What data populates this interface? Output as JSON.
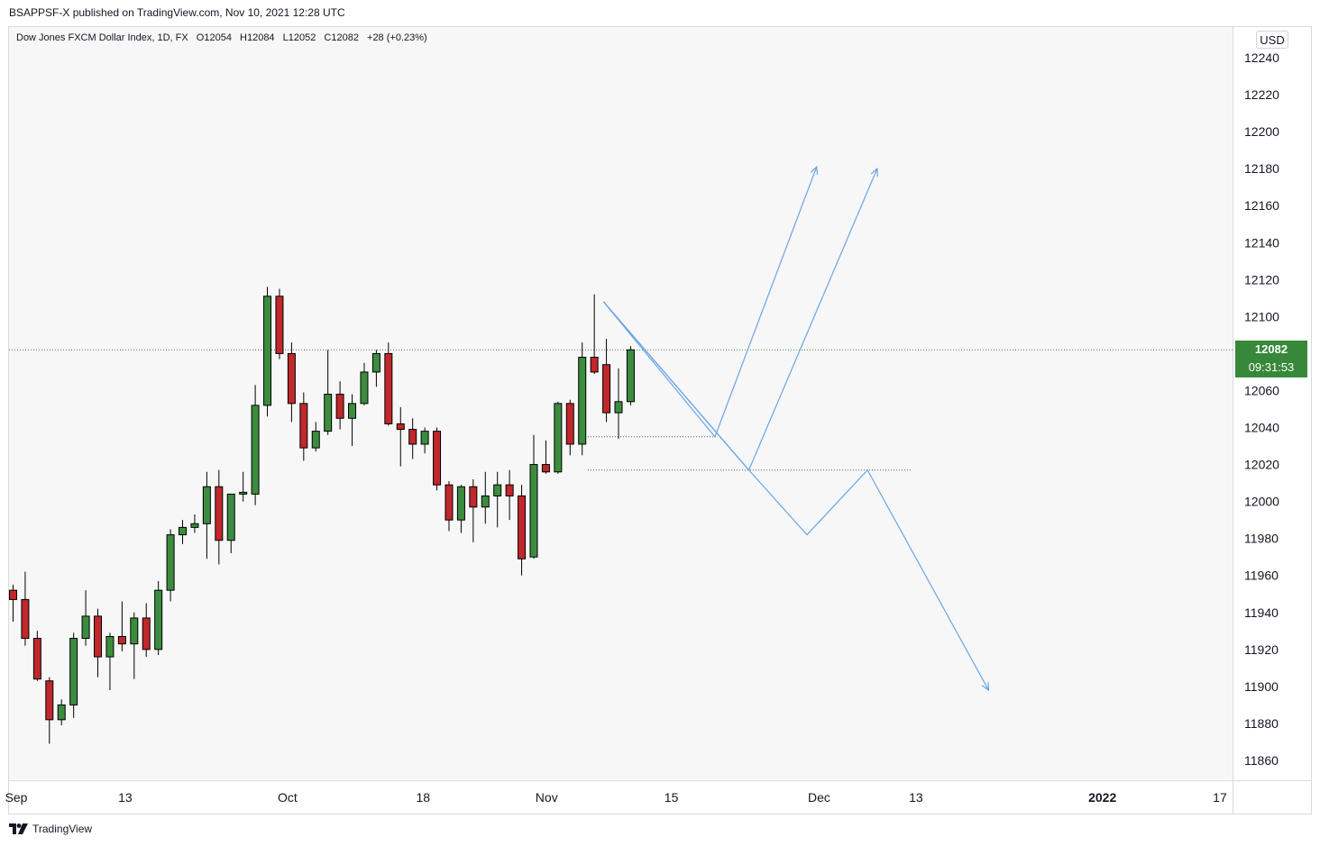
{
  "header": {
    "published": "BSAPPSF-X published on TradingView.com, Nov 10, 2021 12:28 UTC"
  },
  "legend": {
    "symbol": "Dow Jones FXCM Dollar Index, 1D, FX",
    "open": "O12054",
    "high": "H12084",
    "low": "L12052",
    "close": "C12082",
    "change": "+28 (+0.23%)"
  },
  "price_axis": {
    "currency": "USD",
    "last_price": "12082",
    "countdown": "09:31:53"
  },
  "footer": {
    "brand": "TradingView"
  },
  "colors": {
    "up": "#3c8c3f",
    "down": "#c0282b",
    "drawing": "#6aa4e6",
    "last_line": "#3c8c3f",
    "badge": "#37883a"
  },
  "chart_data": {
    "type": "candlestick",
    "title": "Dow Jones FXCM Dollar Index, 1D, FX",
    "ylim": [
      11845,
      12255
    ],
    "y_ticks": [
      12240,
      12220,
      12200,
      12180,
      12160,
      12140,
      12120,
      12100,
      12060,
      12040,
      12020,
      12000,
      11980,
      11960,
      11940,
      11920,
      11900,
      11880,
      11860
    ],
    "x_ticks": [
      {
        "label": "Sep",
        "index": 0.3,
        "bold": false
      },
      {
        "label": "13",
        "index": 9.3,
        "bold": false
      },
      {
        "label": "Oct",
        "index": 22.7,
        "bold": false
      },
      {
        "label": "18",
        "index": 33.9,
        "bold": false
      },
      {
        "label": "Nov",
        "index": 44.1,
        "bold": false
      },
      {
        "label": "15",
        "index": 54.4,
        "bold": false
      },
      {
        "label": "Dec",
        "index": 66.6,
        "bold": false
      },
      {
        "label": "13",
        "index": 74.6,
        "bold": false
      },
      {
        "label": "2022",
        "index": 90.0,
        "bold": true
      },
      {
        "label": "17",
        "index": 99.7,
        "bold": false
      }
    ],
    "candles": [
      {
        "o": 11952,
        "h": 11955,
        "l": 11935,
        "c": 11947
      },
      {
        "o": 11947,
        "h": 11962,
        "l": 11922,
        "c": 11926
      },
      {
        "o": 11926,
        "h": 11930,
        "l": 11903,
        "c": 11904
      },
      {
        "o": 11903,
        "h": 11905,
        "l": 11869,
        "c": 11882
      },
      {
        "o": 11882,
        "h": 11893,
        "l": 11879,
        "c": 11890
      },
      {
        "o": 11890,
        "h": 11929,
        "l": 11883,
        "c": 11926
      },
      {
        "o": 11926,
        "h": 11952,
        "l": 11922,
        "c": 11938
      },
      {
        "o": 11938,
        "h": 11942,
        "l": 11905,
        "c": 11916
      },
      {
        "o": 11916,
        "h": 11929,
        "l": 11898,
        "c": 11927
      },
      {
        "o": 11927,
        "h": 11946,
        "l": 11919,
        "c": 11923
      },
      {
        "o": 11923,
        "h": 11940,
        "l": 11904,
        "c": 11937
      },
      {
        "o": 11937,
        "h": 11945,
        "l": 11916,
        "c": 11920
      },
      {
        "o": 11920,
        "h": 11957,
        "l": 11917,
        "c": 11952
      },
      {
        "o": 11952,
        "h": 11985,
        "l": 11946,
        "c": 11982
      },
      {
        "o": 11982,
        "h": 11990,
        "l": 11977,
        "c": 11986
      },
      {
        "o": 11986,
        "h": 11993,
        "l": 11983,
        "c": 11988
      },
      {
        "o": 11988,
        "h": 12016,
        "l": 11969,
        "c": 12008
      },
      {
        "o": 12008,
        "h": 12017,
        "l": 11966,
        "c": 11979
      },
      {
        "o": 11979,
        "h": 12004,
        "l": 11972,
        "c": 12004
      },
      {
        "o": 12004,
        "h": 12016,
        "l": 12000,
        "c": 12005
      },
      {
        "o": 12004,
        "h": 12063,
        "l": 11998,
        "c": 12052
      },
      {
        "o": 12052,
        "h": 12116,
        "l": 12046,
        "c": 12111
      },
      {
        "o": 12111,
        "h": 12115,
        "l": 12077,
        "c": 12080
      },
      {
        "o": 12080,
        "h": 12086,
        "l": 12043,
        "c": 12053
      },
      {
        "o": 12053,
        "h": 12059,
        "l": 12022,
        "c": 12029
      },
      {
        "o": 12029,
        "h": 12043,
        "l": 12027,
        "c": 12038
      },
      {
        "o": 12038,
        "h": 12082,
        "l": 12036,
        "c": 12058
      },
      {
        "o": 12058,
        "h": 12065,
        "l": 12039,
        "c": 12045
      },
      {
        "o": 12045,
        "h": 12058,
        "l": 12030,
        "c": 12053
      },
      {
        "o": 12053,
        "h": 12075,
        "l": 12052,
        "c": 12070
      },
      {
        "o": 12070,
        "h": 12082,
        "l": 12062,
        "c": 12080
      },
      {
        "o": 12080,
        "h": 12086,
        "l": 12041,
        "c": 12042
      },
      {
        "o": 12042,
        "h": 12051,
        "l": 12019,
        "c": 12039
      },
      {
        "o": 12039,
        "h": 12045,
        "l": 12023,
        "c": 12031
      },
      {
        "o": 12031,
        "h": 12040,
        "l": 12026,
        "c": 12038
      },
      {
        "o": 12038,
        "h": 12040,
        "l": 12006,
        "c": 12009
      },
      {
        "o": 12009,
        "h": 12011,
        "l": 11984,
        "c": 11990
      },
      {
        "o": 11990,
        "h": 12009,
        "l": 11983,
        "c": 12008
      },
      {
        "o": 12008,
        "h": 12012,
        "l": 11978,
        "c": 11997
      },
      {
        "o": 11997,
        "h": 12016,
        "l": 11988,
        "c": 12003
      },
      {
        "o": 12003,
        "h": 12016,
        "l": 11986,
        "c": 12009
      },
      {
        "o": 12009,
        "h": 12017,
        "l": 11990,
        "c": 12003
      },
      {
        "o": 12003,
        "h": 12009,
        "l": 11960,
        "c": 11969
      },
      {
        "o": 11970,
        "h": 12036,
        "l": 11969,
        "c": 12020
      },
      {
        "o": 12020,
        "h": 12033,
        "l": 12015,
        "c": 12016
      },
      {
        "o": 12016,
        "h": 12054,
        "l": 12015,
        "c": 12053
      },
      {
        "o": 12053,
        "h": 12055,
        "l": 12025,
        "c": 12031
      },
      {
        "o": 12031,
        "h": 12086,
        "l": 12025,
        "c": 12078
      },
      {
        "o": 12078,
        "h": 12112,
        "l": 12069,
        "c": 12070
      },
      {
        "o": 12074,
        "h": 12088,
        "l": 12043,
        "c": 12048
      },
      {
        "o": 12048,
        "h": 12072,
        "l": 12034,
        "c": 12054
      },
      {
        "o": 12054,
        "h": 12084,
        "l": 12052,
        "c": 12082
      }
    ],
    "last_price_line": 12082,
    "horizontal_lines": [
      {
        "y": 12035,
        "from_index": 47.5,
        "to_index": 58.2
      },
      {
        "y": 12017,
        "from_index": 47.5,
        "to_index": 74.2
      }
    ],
    "drawings": [
      {
        "points": [
          [
            48.8,
            12108
          ],
          [
            58.0,
            12035
          ],
          [
            66.4,
            12181
          ]
        ],
        "arrow": true
      },
      {
        "points": [
          [
            48.8,
            12108
          ],
          [
            60.8,
            12017
          ],
          [
            71.4,
            12180
          ]
        ],
        "arrow": true
      },
      {
        "points": [
          [
            48.8,
            12108
          ],
          [
            60.8,
            12017
          ],
          [
            65.6,
            11982
          ],
          [
            70.6,
            12017
          ],
          [
            80.6,
            11898
          ]
        ],
        "arrow": true
      }
    ]
  }
}
